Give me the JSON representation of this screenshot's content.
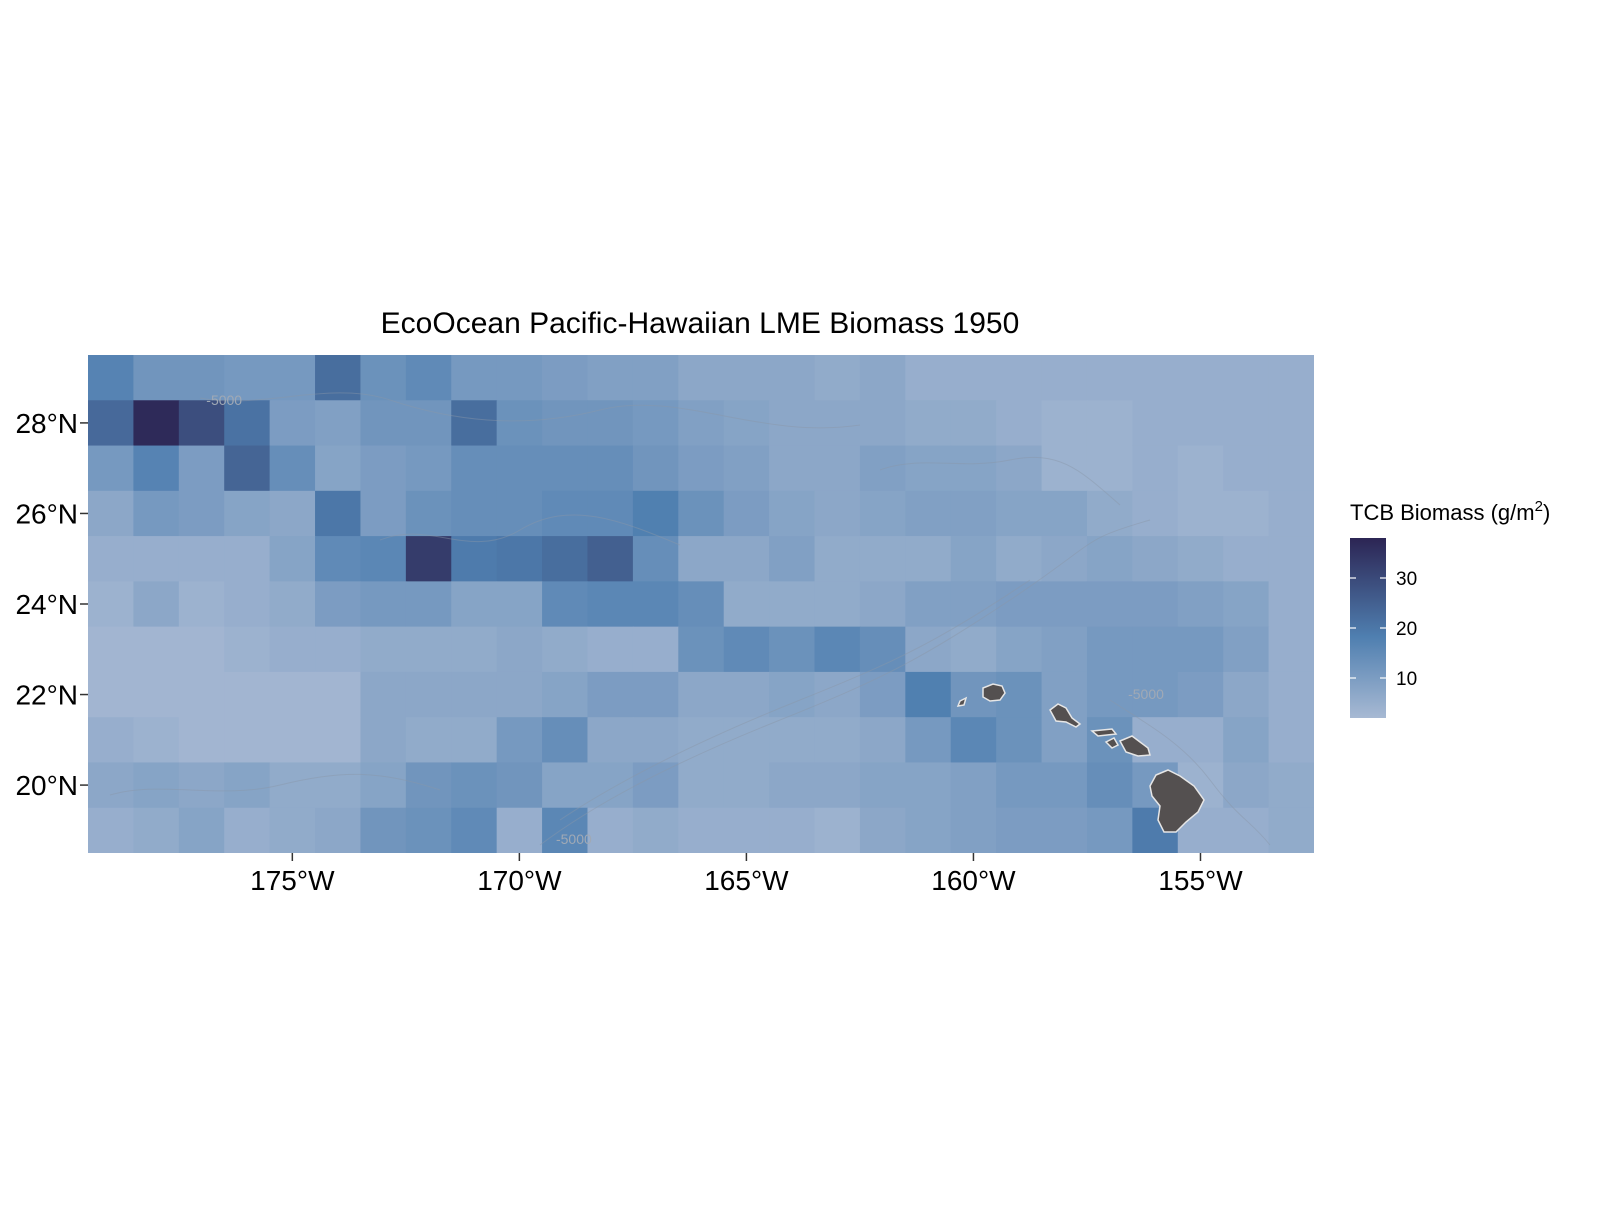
{
  "map": {
    "title": "EcoOcean Pacific-Hawaiian LME Biomass 1950",
    "x_ticks": [
      {
        "lon": -175,
        "label": "175°W"
      },
      {
        "lon": -170,
        "label": "170°W"
      },
      {
        "lon": -165,
        "label": "165°W"
      },
      {
        "lon": -160,
        "label": "160°W"
      },
      {
        "lon": -155,
        "label": "155°W"
      }
    ],
    "y_ticks": [
      {
        "lat": 28,
        "label": "28°N"
      },
      {
        "lat": 26,
        "label": "26°N"
      },
      {
        "lat": 24,
        "label": "24°N"
      },
      {
        "lat": 22,
        "label": "22°N"
      },
      {
        "lat": 20,
        "label": "20°N"
      }
    ],
    "contour_labels": [
      {
        "text": "-5000",
        "lon": -176.5,
        "lat": 28.4
      },
      {
        "text": "-5000",
        "lon": -168.8,
        "lat": 18.7
      },
      {
        "text": "-5000",
        "lon": -156.2,
        "lat": 21.9
      }
    ],
    "land_color": "#545050",
    "land_outline": "#e6e6e6"
  },
  "legend": {
    "title_prefix": "TCB Biomass (g/m",
    "title_sup": "2",
    "title_suffix": ")",
    "ticks": [
      10,
      20,
      30
    ],
    "tick_labels": [
      "10",
      "20",
      "30"
    ],
    "range": [
      2,
      38
    ],
    "low_color": "#a7b9d3",
    "mid_color": "#4f7fb0",
    "high_color": "#2c2554"
  },
  "chart_data": {
    "type": "heatmap",
    "title": "EcoOcean Pacific-Hawaiian LME Biomass 1950",
    "xlabel": "",
    "ylabel": "",
    "x_range": [
      -179.5,
      -152.5
    ],
    "y_range": [
      18.5,
      29.5
    ],
    "cell_size_deg": 1,
    "columns_lon": [
      -179,
      -178,
      -177,
      -176,
      -175,
      -174,
      -173,
      -172,
      -171,
      -170,
      -169,
      -168,
      -167,
      -166,
      -165,
      -164,
      -163,
      -162,
      -161,
      -160,
      -159,
      -158,
      -157,
      -156,
      -155,
      -154,
      -153
    ],
    "rows_lat": [
      29,
      28,
      27,
      26,
      25,
      24,
      23,
      22,
      21,
      20,
      19
    ],
    "values": [
      [
        17,
        12,
        12,
        11,
        11,
        22,
        13,
        15,
        11,
        11,
        10,
        9,
        9,
        7,
        7,
        7,
        6,
        7,
        5,
        5,
        5,
        5,
        5,
        5,
        5,
        5,
        5
      ],
      [
        23,
        37,
        29,
        21,
        10,
        9,
        12,
        12,
        22,
        13,
        12,
        12,
        11,
        9,
        8,
        7,
        7,
        7,
        6,
        6,
        5,
        4,
        4,
        5,
        5,
        5,
        5
      ],
      [
        11,
        17,
        10,
        24,
        14,
        8,
        10,
        11,
        14,
        14,
        14,
        14,
        12,
        10,
        9,
        7,
        7,
        9,
        8,
        8,
        7,
        4,
        4,
        5,
        4,
        5,
        5
      ],
      [
        7,
        11,
        10,
        8,
        7,
        20,
        10,
        13,
        14,
        14,
        15,
        15,
        18,
        13,
        10,
        8,
        7,
        8,
        9,
        9,
        8,
        8,
        6,
        5,
        4,
        4,
        5
      ],
      [
        5,
        5,
        5,
        5,
        8,
        15,
        16,
        33,
        19,
        20,
        22,
        25,
        14,
        7,
        7,
        9,
        6,
        6,
        6,
        8,
        6,
        7,
        8,
        7,
        6,
        5,
        5
      ],
      [
        4,
        7,
        4,
        5,
        6,
        10,
        11,
        11,
        8,
        8,
        15,
        16,
        16,
        14,
        6,
        6,
        6,
        7,
        9,
        9,
        10,
        10,
        10,
        10,
        9,
        8,
        5
      ],
      [
        3,
        3,
        3,
        4,
        5,
        5,
        6,
        6,
        6,
        7,
        6,
        5,
        5,
        13,
        15,
        13,
        16,
        14,
        7,
        6,
        8,
        9,
        11,
        11,
        11,
        9,
        5
      ],
      [
        3,
        3,
        3,
        3,
        3,
        3,
        7,
        7,
        7,
        7,
        8,
        10,
        10,
        7,
        7,
        8,
        7,
        10,
        18,
        12,
        13,
        9,
        11,
        11,
        10,
        7,
        5
      ],
      [
        5,
        4,
        3,
        3,
        3,
        3,
        7,
        6,
        6,
        11,
        14,
        7,
        7,
        6,
        6,
        6,
        6,
        7,
        11,
        16,
        13,
        9,
        13,
        5,
        5,
        8,
        5
      ],
      [
        7,
        8,
        7,
        8,
        6,
        6,
        8,
        12,
        13,
        12,
        8,
        8,
        10,
        6,
        6,
        7,
        7,
        8,
        8,
        9,
        11,
        11,
        14,
        11,
        4,
        7,
        6
      ],
      [
        5,
        6,
        8,
        5,
        6,
        7,
        12,
        13,
        15,
        5,
        16,
        5,
        6,
        5,
        5,
        5,
        4,
        7,
        8,
        9,
        10,
        10,
        11,
        19,
        5,
        5,
        6
      ]
    ],
    "legend_position": "right"
  }
}
